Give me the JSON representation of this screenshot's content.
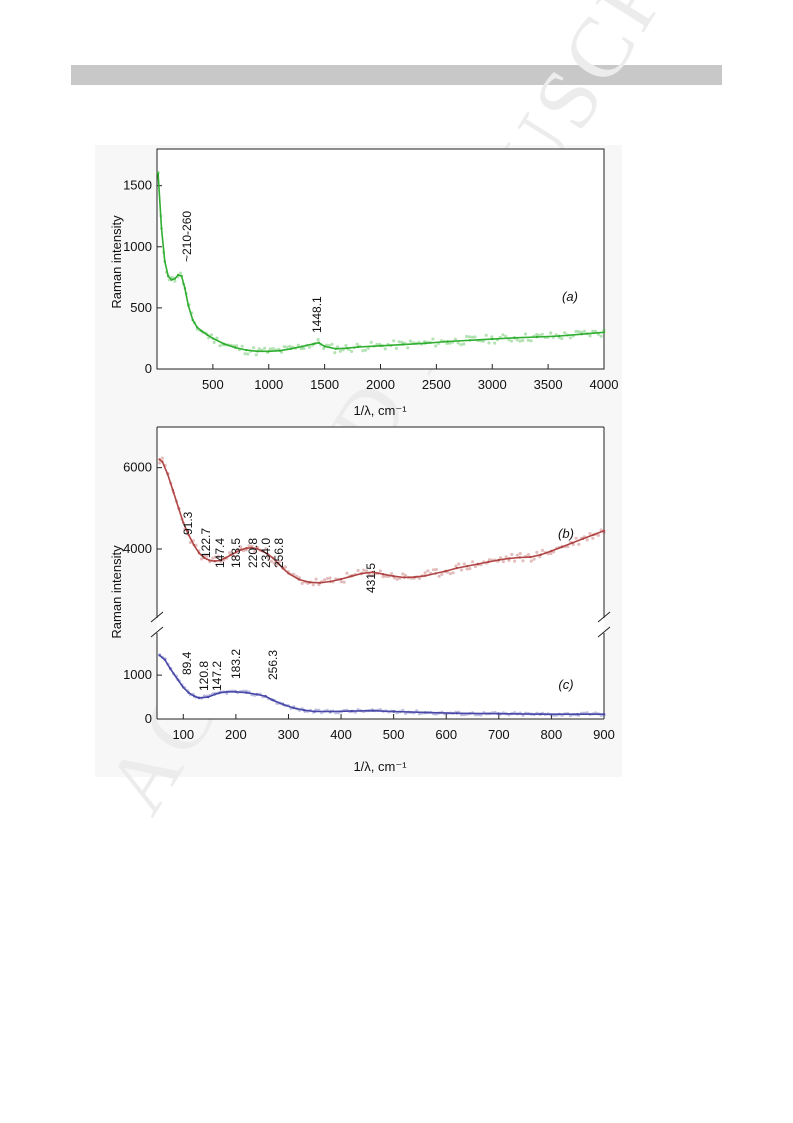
{
  "watermark": "ACCEPTED MANUSCRIPT",
  "chart_data": [
    {
      "id": "a",
      "type": "line",
      "panel_label": "(a)",
      "xlabel": "1/λ, cm⁻¹",
      "ylabel": "Raman intensity",
      "xlim": [
        0,
        4000
      ],
      "ylim": [
        0,
        1800
      ],
      "xticks": [
        500,
        1000,
        1500,
        2000,
        2500,
        3000,
        3500,
        4000
      ],
      "yticks": [
        0,
        500,
        1000,
        1500
      ],
      "series": [
        {
          "color": "#2fae2f",
          "x": [
            10,
            40,
            70,
            100,
            130,
            160,
            190,
            220,
            250,
            280,
            320,
            360,
            400,
            450,
            500,
            600,
            700,
            800,
            900,
            1000,
            1100,
            1200,
            1300,
            1400,
            1448,
            1500,
            1600,
            1700,
            1800,
            2000,
            2200,
            2400,
            2600,
            2800,
            3000,
            3200,
            3400,
            3600,
            3800,
            4000
          ],
          "y": [
            1600,
            1150,
            880,
            760,
            730,
            740,
            770,
            760,
            660,
            520,
            400,
            340,
            310,
            280,
            250,
            205,
            175,
            155,
            145,
            145,
            150,
            165,
            185,
            205,
            215,
            185,
            165,
            170,
            180,
            190,
            200,
            210,
            225,
            235,
            245,
            255,
            262,
            270,
            285,
            300
          ]
        }
      ],
      "annotations": [
        {
          "text": "~210-260",
          "x": 215,
          "y": 850
        },
        {
          "text": "1448.1",
          "x": 1448,
          "y": 250
        }
      ]
    },
    {
      "id": "b",
      "type": "line",
      "panel_label": "(b)",
      "xlabel": "",
      "ylabel": "Raman intensity",
      "xlim": [
        50,
        900
      ],
      "ylim": [
        2500,
        7000
      ],
      "xticks": [
        100,
        200,
        300,
        400,
        500,
        600,
        700,
        800,
        900
      ],
      "yticks": [
        4000,
        6000
      ],
      "series": [
        {
          "color": "#b04545",
          "x": [
            55,
            60,
            70,
            80,
            91,
            100,
            110,
            120,
            130,
            140,
            150,
            160,
            170,
            180,
            190,
            200,
            210,
            220,
            230,
            240,
            250,
            260,
            270,
            280,
            290,
            300,
            320,
            340,
            360,
            380,
            400,
            420,
            440,
            460,
            480,
            500,
            520,
            540,
            560,
            580,
            600,
            620,
            640,
            660,
            680,
            700,
            720,
            740,
            760,
            780,
            800,
            820,
            840,
            860,
            880,
            900
          ],
          "y": [
            6200,
            6150,
            5850,
            5450,
            5000,
            4650,
            4350,
            4100,
            3900,
            3780,
            3720,
            3700,
            3720,
            3780,
            3850,
            3920,
            3980,
            4020,
            4030,
            4010,
            3950,
            3880,
            3780,
            3650,
            3520,
            3400,
            3250,
            3180,
            3170,
            3200,
            3260,
            3330,
            3400,
            3430,
            3380,
            3330,
            3300,
            3310,
            3340,
            3400,
            3460,
            3530,
            3580,
            3630,
            3680,
            3730,
            3770,
            3790,
            3800,
            3860,
            3950,
            4050,
            4150,
            4250,
            4350,
            4450
          ]
        }
      ],
      "annotations": [
        {
          "text": "91.3",
          "x": 91.3
        },
        {
          "text": "122.7",
          "x": 122.7
        },
        {
          "text": "147.4",
          "x": 147.4
        },
        {
          "text": "183.5",
          "x": 183.5
        },
        {
          "text": "220.8",
          "x": 220.8
        },
        {
          "text": "234.0",
          "x": 234.0
        },
        {
          "text": "256.8",
          "x": 256.8
        },
        {
          "text": "431.5",
          "x": 431.5
        }
      ]
    },
    {
      "id": "c",
      "type": "line",
      "panel_label": "(c)",
      "xlabel": "1/λ, cm⁻¹",
      "ylabel": "",
      "xlim": [
        50,
        900
      ],
      "ylim": [
        0,
        1800
      ],
      "xticks": [
        100,
        200,
        300,
        400,
        500,
        600,
        700,
        800,
        900
      ],
      "yticks": [
        0,
        1000
      ],
      "series": [
        {
          "color": "#4848a8",
          "x": [
            55,
            65,
            75,
            89.4,
            100,
            110,
            120.8,
            130,
            147.2,
            160,
            170,
            183.2,
            200,
            220,
            240,
            256.3,
            270,
            290,
            310,
            330,
            350,
            380,
            420,
            460,
            500,
            560,
            620,
            700,
            780,
            850,
            900
          ],
          "y": [
            1450,
            1350,
            1150,
            900,
            720,
            600,
            520,
            480,
            500,
            560,
            600,
            620,
            620,
            600,
            560,
            520,
            430,
            330,
            250,
            200,
            170,
            170,
            180,
            190,
            170,
            150,
            130,
            120,
            110,
            110,
            110
          ]
        }
      ],
      "annotations": [
        {
          "text": "89.4",
          "x": 89.4
        },
        {
          "text": "120.8",
          "x": 120.8
        },
        {
          "text": "147.2",
          "x": 147.2
        },
        {
          "text": "183.2",
          "x": 183.2
        },
        {
          "text": "256.3",
          "x": 256.3
        }
      ]
    }
  ]
}
